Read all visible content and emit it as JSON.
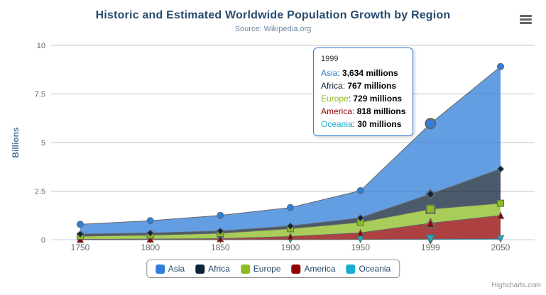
{
  "header": {
    "title": "Historic and Estimated Worldwide Population Growth by Region",
    "subtitle": "Source: Wikipedia.org"
  },
  "export_menu": {
    "icon": "hamburger-menu-icon"
  },
  "credits": {
    "label": "Highcharts.com"
  },
  "chart_data": {
    "type": "area",
    "stacking": "normal",
    "title": "Historic and Estimated Worldwide Population Growth by Region",
    "subtitle": "Source: Wikipedia.org",
    "categories": [
      "1750",
      "1800",
      "1850",
      "1900",
      "1950",
      "1999",
      "2050"
    ],
    "series": [
      {
        "name": "Asia",
        "color": "#2f7ed8",
        "marker": "circle",
        "values": [
          502,
          635,
          809,
          947,
          1402,
          3634,
          5268
        ]
      },
      {
        "name": "Africa",
        "color": "#0d233a",
        "marker": "diamond",
        "values": [
          106,
          107,
          111,
          133,
          221,
          767,
          1766
        ]
      },
      {
        "name": "Europe",
        "color": "#8bbc21",
        "marker": "square",
        "values": [
          163,
          203,
          276,
          408,
          547,
          729,
          628
        ]
      },
      {
        "name": "America",
        "color": "#910000",
        "marker": "triangle",
        "values": [
          18,
          31,
          54,
          156,
          339,
          818,
          1201
        ]
      },
      {
        "name": "Oceania",
        "color": "#1aadce",
        "marker": "triangle-down",
        "values": [
          2,
          2,
          2,
          6,
          13,
          30,
          46
        ]
      }
    ],
    "values_unit": "millions",
    "xlabel": "",
    "ylabel": "Billions",
    "yticks": [
      0,
      2.5,
      5,
      7.5,
      10
    ],
    "ylim": [
      0,
      10
    ],
    "grid": "horizontal",
    "legend_position": "bottom",
    "fill_opacity": 0.75,
    "line_color": "#666666",
    "grid_color": "#c0c0c0",
    "axis_line_color": "#c0d0e0",
    "axis_label_color": "#666666",
    "axis_title_color": "#4d759e",
    "hovered_category_index": 5
  },
  "tooltip": {
    "header": "1999",
    "rows": [
      {
        "name": "Asia",
        "value": "3,634 millions"
      },
      {
        "name": "Africa",
        "value": "767 millions"
      },
      {
        "name": "Europe",
        "value": "729 millions"
      },
      {
        "name": "America",
        "value": "818 millions"
      },
      {
        "name": "Oceania",
        "value": "30 millions"
      }
    ]
  }
}
